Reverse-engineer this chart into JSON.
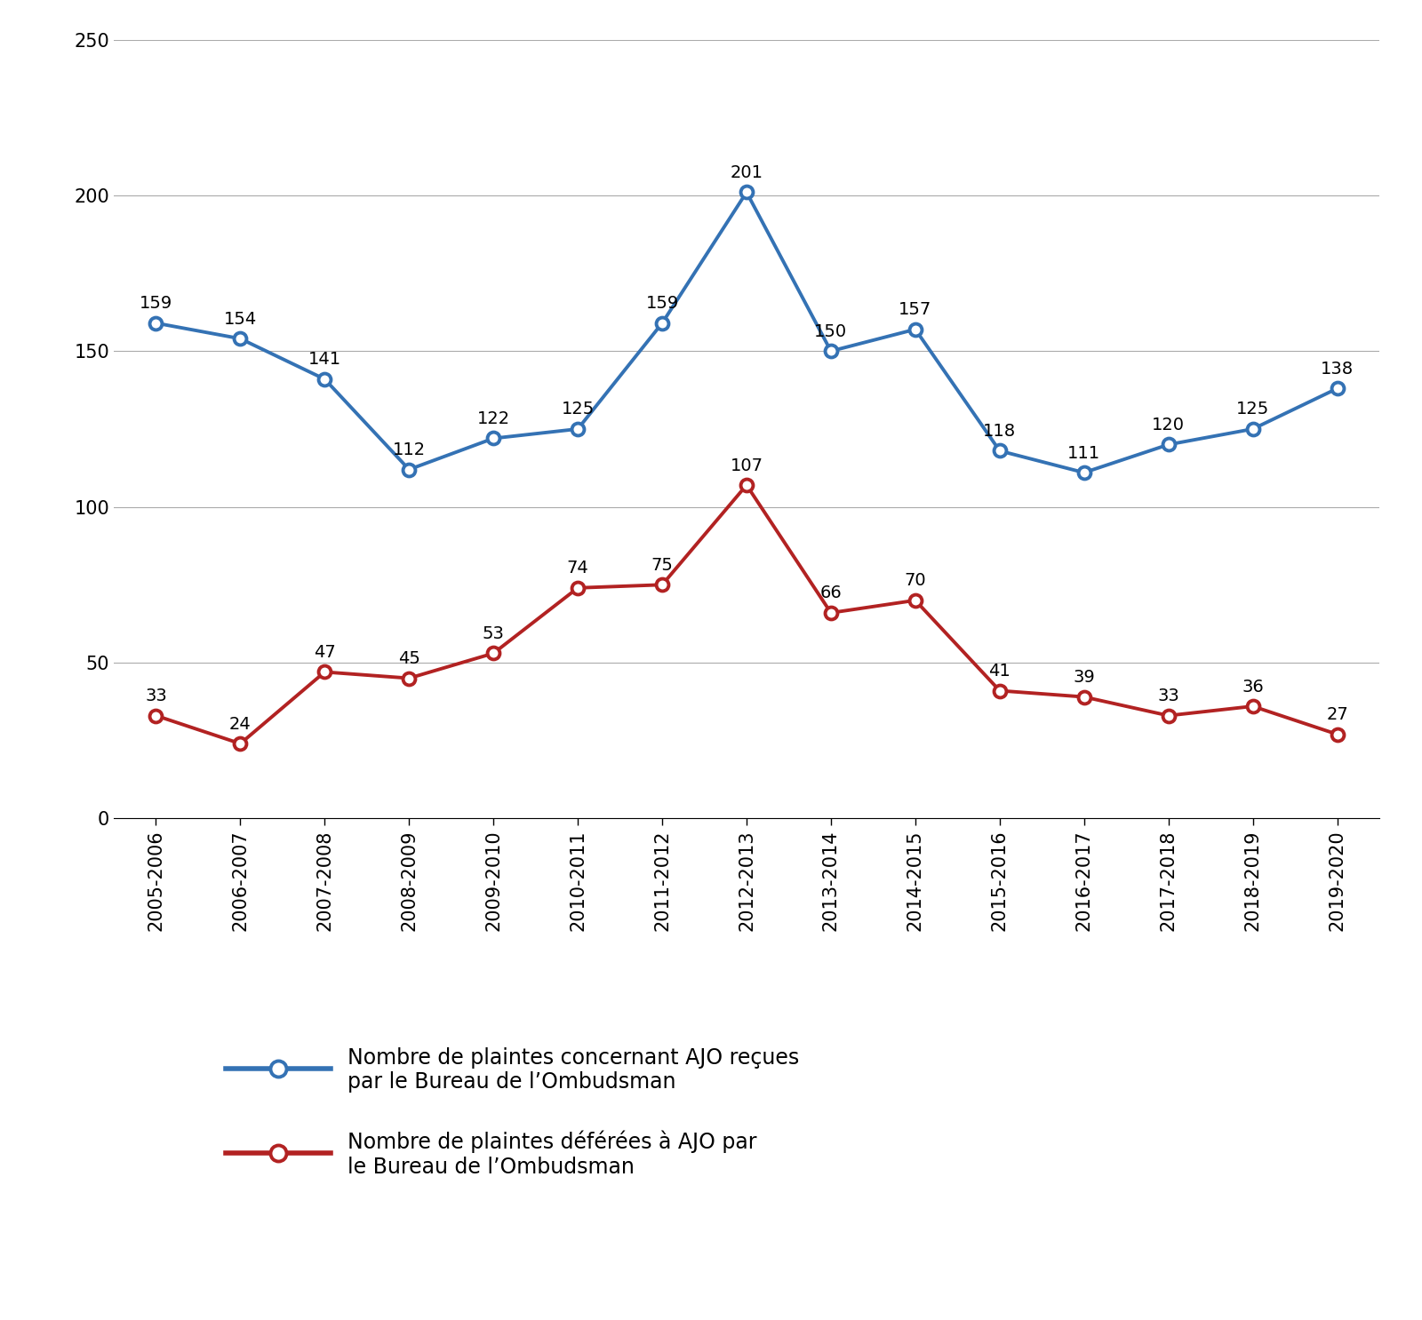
{
  "years": [
    "2005-2006",
    "2006-2007",
    "2007-2008",
    "2008-2009",
    "2009-2010",
    "2010-2011",
    "2011-2012",
    "2012-2013",
    "2013-2014",
    "2014-2015",
    "2015-2016",
    "2016-2017",
    "2017-2018",
    "2018-2019",
    "2019-2020"
  ],
  "series1": [
    159,
    154,
    141,
    112,
    122,
    125,
    159,
    201,
    150,
    157,
    118,
    111,
    120,
    125,
    138
  ],
  "series2": [
    33,
    24,
    47,
    45,
    53,
    74,
    75,
    107,
    66,
    70,
    41,
    39,
    33,
    36,
    27
  ],
  "series1_color": "#3472B4",
  "series2_color": "#B22222",
  "series1_label_line1": "Nombre de plaintes concernant AJO reçues",
  "series1_label_line2": "par le Bureau de l’Ombudsman",
  "series2_label_line1": "Nombre de plaintes déférées à AJO par",
  "series2_label_line2": "le Bureau de l’Ombudsman",
  "ylim": [
    0,
    250
  ],
  "yticks": [
    0,
    50,
    100,
    150,
    200,
    250
  ],
  "background_color": "#ffffff",
  "grid_color": "#aaaaaa",
  "annotation_fontsize": 14,
  "axis_fontsize": 15,
  "legend_fontsize": 17
}
